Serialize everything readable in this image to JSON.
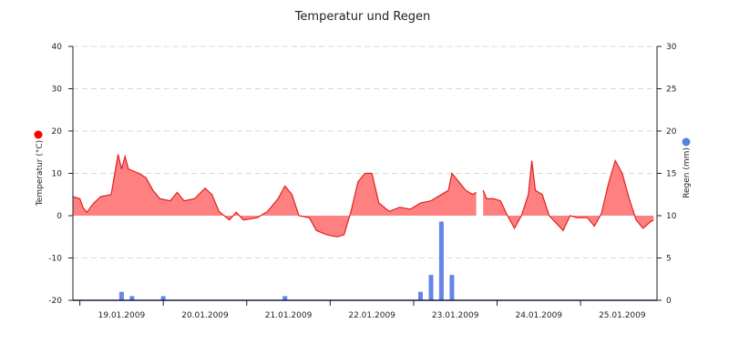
{
  "chart_data": {
    "type": "area",
    "title": "Temperatur und Regen",
    "x_domain": [
      "18.01.2009 22:00",
      "25.01.2009 22:00"
    ],
    "date_labels": [
      "19.01.2009",
      "20.01.2009",
      "21.01.2009",
      "22.01.2009",
      "23.01.2009",
      "24.01.2009",
      "25.01.2009"
    ],
    "y_left": {
      "label": "Temperatur (°C)",
      "min": -20,
      "max": 40,
      "ticks": [
        40,
        30,
        20,
        10,
        0,
        -10,
        -20
      ]
    },
    "y_right": {
      "label": "Regen (mm)",
      "min": 0,
      "max": 30,
      "ticks": [
        30,
        25,
        20,
        15,
        10,
        5,
        0
      ]
    },
    "grid": true,
    "legend": "axis-side dots",
    "colors": {
      "temperature_fill": "#ff8080",
      "temperature_line": "#e02020",
      "temperature_marker": "#ff0000",
      "rain": "#6585e8",
      "rain_marker": "#5a7fe0",
      "grid": "#d8d8d8",
      "axis": "#222222"
    },
    "series": [
      {
        "values_unit": "°C",
        "points": [
          [
            "18.01.2009 22:00",
            4.5
          ],
          [
            "19.01.2009 00:00",
            4.0
          ],
          [
            "19.01.2009 01:00",
            1.8
          ],
          [
            "19.01.2009 02:00",
            0.8
          ],
          [
            "19.01.2009 04:00",
            3.0
          ],
          [
            "19.01.2009 06:00",
            4.5
          ],
          [
            "19.01.2009 09:00",
            5.0
          ],
          [
            "19.01.2009 11:00",
            14.5
          ],
          [
            "19.01.2009 12:00",
            11.0
          ],
          [
            "19.01.2009 13:00",
            14.0
          ],
          [
            "19.01.2009 14:00",
            11.0
          ],
          [
            "19.01.2009 17:00",
            10.0
          ],
          [
            "19.01.2009 19:00",
            9.0
          ],
          [
            "19.01.2009 21:00",
            6.0
          ],
          [
            "19.01.2009 23:00",
            4.0
          ],
          [
            "20.01.2009 02:00",
            3.5
          ],
          [
            "20.01.2009 04:00",
            5.5
          ],
          [
            "20.01.2009 06:00",
            3.5
          ],
          [
            "20.01.2009 09:00",
            4.0
          ],
          [
            "20.01.2009 12:00",
            6.5
          ],
          [
            "20.01.2009 14:00",
            5.0
          ],
          [
            "20.01.2009 16:00",
            1.0
          ],
          [
            "20.01.2009 19:00",
            -1.0
          ],
          [
            "20.01.2009 21:00",
            0.8
          ],
          [
            "20.01.2009 23:00",
            -1.0
          ],
          [
            "21.01.2009 03:00",
            -0.5
          ],
          [
            "21.01.2009 06:00",
            1.0
          ],
          [
            "21.01.2009 09:00",
            4.0
          ],
          [
            "21.01.2009 11:00",
            7.0
          ],
          [
            "21.01.2009 13:00",
            5.0
          ],
          [
            "21.01.2009 15:00",
            0.0
          ],
          [
            "21.01.2009 18:00",
            -0.5
          ],
          [
            "21.01.2009 20:00",
            -3.5
          ],
          [
            "21.01.2009 23:00",
            -4.5
          ],
          [
            "22.01.2009 02:00",
            -5.0
          ],
          [
            "22.01.2009 04:00",
            -4.5
          ],
          [
            "22.01.2009 06:00",
            1.0
          ],
          [
            "22.01.2009 08:00",
            8.0
          ],
          [
            "22.01.2009 10:00",
            10.0
          ],
          [
            "22.01.2009 12:00",
            10.0
          ],
          [
            "22.01.2009 14:00",
            3.0
          ],
          [
            "22.01.2009 17:00",
            1.0
          ],
          [
            "22.01.2009 20:00",
            2.0
          ],
          [
            "22.01.2009 23:00",
            1.5
          ],
          [
            "23.01.2009 02:00",
            3.0
          ],
          [
            "23.01.2009 05:00",
            3.5
          ],
          [
            "23.01.2009 08:00",
            5.0
          ],
          [
            "23.01.2009 10:00",
            6.0
          ],
          [
            "23.01.2009 11:00",
            10.0
          ],
          [
            "23.01.2009 13:00",
            8.0
          ],
          [
            "23.01.2009 15:00",
            6.0
          ],
          [
            "23.01.2009 17:00",
            5.0
          ],
          [
            "23.01.2009 18:00",
            5.5
          ],
          [
            "23.01.2009 19:00",
            null
          ],
          [
            "23.01.2009 20:00",
            6.0
          ],
          [
            "23.01.2009 21:00",
            4.0
          ],
          [
            "23.01.2009 23:00",
            4.0
          ],
          [
            "24.01.2009 01:00",
            3.5
          ],
          [
            "24.01.2009 03:00",
            0.0
          ],
          [
            "24.01.2009 05:00",
            -3.0
          ],
          [
            "24.01.2009 07:00",
            0.0
          ],
          [
            "24.01.2009 09:00",
            5.0
          ],
          [
            "24.01.2009 10:00",
            13.0
          ],
          [
            "24.01.2009 11:00",
            6.0
          ],
          [
            "24.01.2009 13:00",
            5.0
          ],
          [
            "24.01.2009 15:00",
            0.0
          ],
          [
            "24.01.2009 19:00",
            -3.5
          ],
          [
            "24.01.2009 21:00",
            0.0
          ],
          [
            "24.01.2009 23:00",
            -0.5
          ],
          [
            "25.01.2009 02:00",
            -0.5
          ],
          [
            "25.01.2009 04:00",
            -2.5
          ],
          [
            "25.01.2009 06:00",
            0.5
          ],
          [
            "25.01.2009 08:00",
            7.5
          ],
          [
            "25.01.2009 10:00",
            13.0
          ],
          [
            "25.01.2009 12:00",
            10.0
          ],
          [
            "25.01.2009 14:00",
            4.0
          ],
          [
            "25.01.2009 16:00",
            -1.0
          ],
          [
            "25.01.2009 18:00",
            -3.0
          ],
          [
            "25.01.2009 20:00",
            -1.5
          ],
          [
            "25.01.2009 21:00",
            -1.0
          ]
        ]
      },
      {
        "values_unit": "mm",
        "bars": [
          [
            "19.01.2009 12:00",
            1.0
          ],
          [
            "19.01.2009 15:00",
            0.5
          ],
          [
            "20.01.2009 00:00",
            0.5
          ],
          [
            "21.01.2009 11:00",
            0.5
          ],
          [
            "23.01.2009 02:00",
            1.0
          ],
          [
            "23.01.2009 05:00",
            3.0
          ],
          [
            "23.01.2009 08:00",
            9.3
          ],
          [
            "23.01.2009 11:00",
            3.0
          ]
        ]
      }
    ]
  }
}
